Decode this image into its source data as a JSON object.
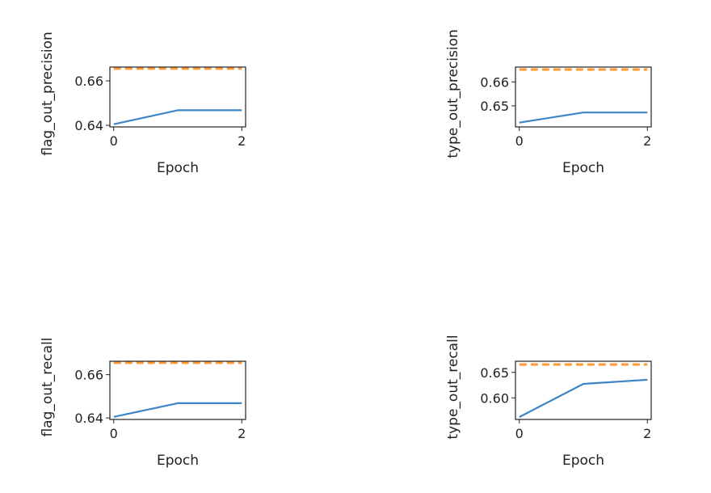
{
  "chart_data": [
    {
      "type": "line",
      "ylabel": "flag_out_precision",
      "xlabel": "Epoch",
      "x": [
        0,
        1,
        2
      ],
      "xticks": [
        "0",
        "2"
      ],
      "xlim": [
        -0.06,
        2.06
      ],
      "ylim": [
        0.6393,
        0.6662
      ],
      "yticks": [
        "0.64",
        "0.66"
      ],
      "series": [
        {
          "values": [
            0.6405,
            0.6468,
            0.6468
          ],
          "color": "#3d85c6",
          "style": "solid"
        },
        {
          "values": [
            0.6655,
            0.6655,
            0.6655
          ],
          "color": "#ff9934",
          "style": "dashed"
        }
      ]
    },
    {
      "type": "line",
      "ylabel": "type_out_precision",
      "xlabel": "Epoch",
      "x": [
        0,
        1,
        2
      ],
      "xticks": [
        "0",
        "2"
      ],
      "xlim": [
        -0.06,
        2.06
      ],
      "ylim": [
        0.6412,
        0.6662
      ],
      "yticks": [
        "0.65",
        "0.66"
      ],
      "series": [
        {
          "values": [
            0.643,
            0.6472,
            0.6472
          ],
          "color": "#3d85c6",
          "style": "solid"
        },
        {
          "values": [
            0.6652,
            0.6652,
            0.6652
          ],
          "color": "#ff9934",
          "style": "dashed"
        }
      ]
    },
    {
      "type": "line",
      "ylabel": "flag_out_recall",
      "xlabel": "Epoch",
      "x": [
        0,
        1,
        2
      ],
      "xticks": [
        "0",
        "2"
      ],
      "xlim": [
        -0.06,
        2.06
      ],
      "ylim": [
        0.6393,
        0.6662
      ],
      "yticks": [
        "0.64",
        "0.66"
      ],
      "series": [
        {
          "values": [
            0.6405,
            0.6468,
            0.6468
          ],
          "color": "#3d85c6",
          "style": "solid"
        },
        {
          "values": [
            0.6655,
            0.6655,
            0.6655
          ],
          "color": "#ff9934",
          "style": "dashed"
        }
      ]
    },
    {
      "type": "line",
      "ylabel": "type_out_recall",
      "xlabel": "Epoch",
      "x": [
        0,
        1,
        2
      ],
      "xticks": [
        "0",
        "2"
      ],
      "xlim": [
        -0.06,
        2.06
      ],
      "ylim": [
        0.5577,
        0.6718
      ],
      "yticks": [
        "0.65",
        "0.60"
      ],
      "series": [
        {
          "values": [
            0.5625,
            0.6275,
            0.6355
          ],
          "color": "#3d85c6",
          "style": "solid"
        },
        {
          "values": [
            0.6655,
            0.6655,
            0.6655
          ],
          "color": "#ff9934",
          "style": "dashed"
        }
      ]
    }
  ]
}
